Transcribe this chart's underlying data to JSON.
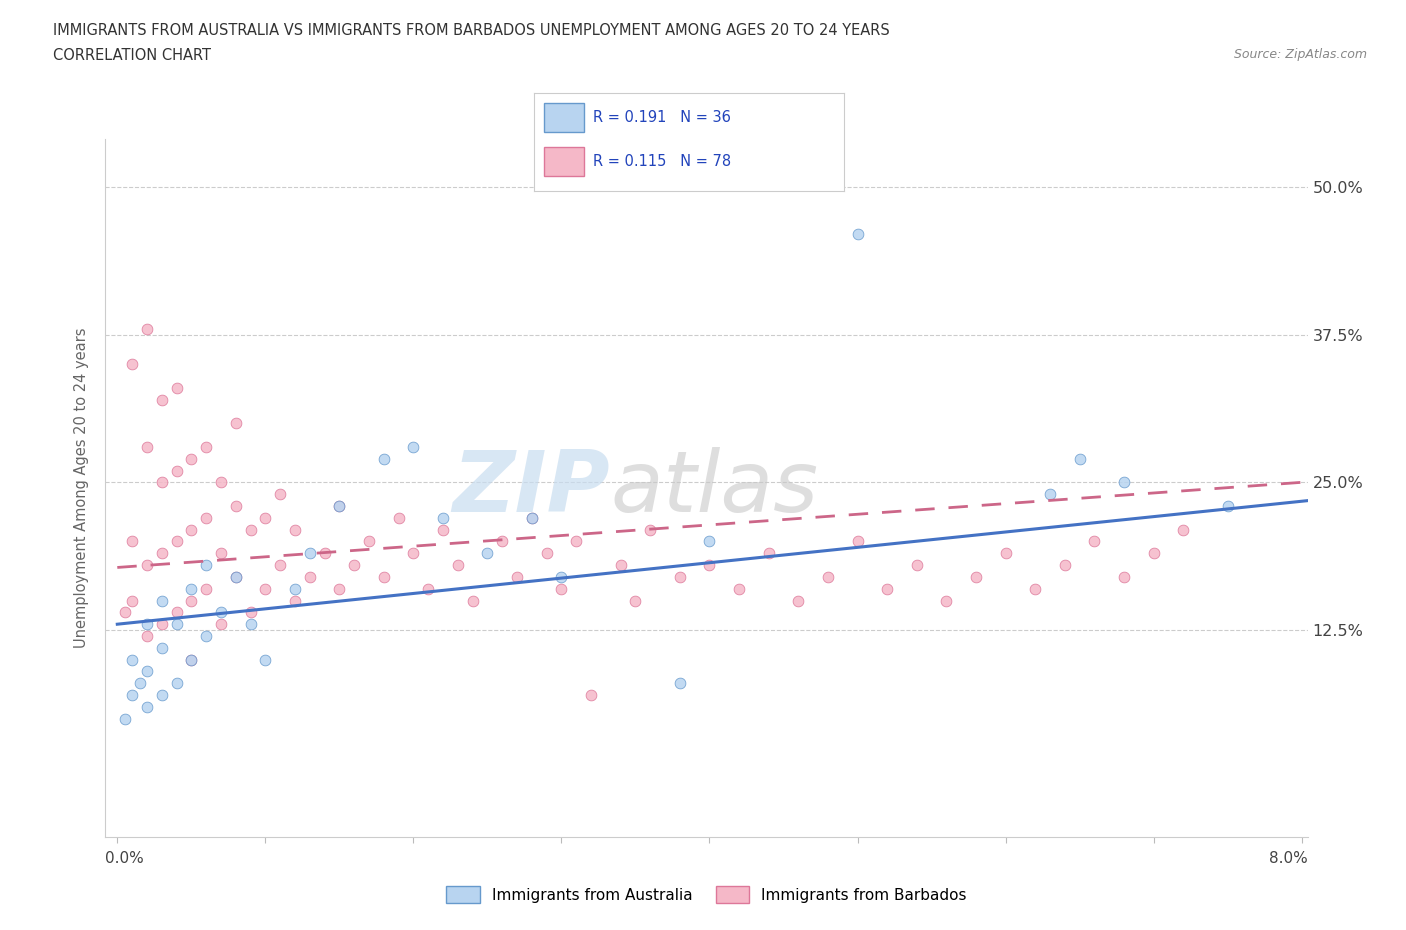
{
  "title_line1": "IMMIGRANTS FROM AUSTRALIA VS IMMIGRANTS FROM BARBADOS UNEMPLOYMENT AMONG AGES 20 TO 24 YEARS",
  "title_line2": "CORRELATION CHART",
  "source_text": "Source: ZipAtlas.com",
  "ylabel": "Unemployment Among Ages 20 to 24 years",
  "ytick_labels": [
    "12.5%",
    "25.0%",
    "37.5%",
    "50.0%"
  ],
  "ytick_values": [
    0.125,
    0.25,
    0.375,
    0.5
  ],
  "xmin": 0.0,
  "xmax": 0.08,
  "ymax": 0.54,
  "ymin": -0.05,
  "legend_r1": "R = 0.191",
  "legend_n1": "N = 36",
  "legend_r2": "R = 0.115",
  "legend_n2": "N = 78",
  "color_australia_fill": "#b8d4f0",
  "color_australia_edge": "#6699cc",
  "color_barbados_fill": "#f5b8c8",
  "color_barbados_edge": "#dd7799",
  "color_line_australia": "#4472c4",
  "color_line_barbados": "#cc6688",
  "watermark_zip": "ZIP",
  "watermark_atlas": "atlas",
  "aus_line_intercept": 0.13,
  "aus_line_slope": 1.3,
  "bar_line_intercept": 0.178,
  "bar_line_slope": 0.9,
  "australia_x": [
    0.0005,
    0.001,
    0.001,
    0.0015,
    0.002,
    0.002,
    0.002,
    0.003,
    0.003,
    0.003,
    0.004,
    0.004,
    0.005,
    0.005,
    0.006,
    0.006,
    0.007,
    0.008,
    0.009,
    0.01,
    0.012,
    0.013,
    0.015,
    0.018,
    0.02,
    0.022,
    0.025,
    0.028,
    0.03,
    0.038,
    0.04,
    0.05,
    0.063,
    0.065,
    0.068,
    0.075
  ],
  "australia_y": [
    0.05,
    0.07,
    0.1,
    0.08,
    0.06,
    0.09,
    0.13,
    0.07,
    0.11,
    0.15,
    0.08,
    0.13,
    0.1,
    0.16,
    0.12,
    0.18,
    0.14,
    0.17,
    0.13,
    0.1,
    0.16,
    0.19,
    0.23,
    0.27,
    0.28,
    0.22,
    0.19,
    0.22,
    0.17,
    0.08,
    0.2,
    0.46,
    0.24,
    0.27,
    0.25,
    0.23
  ],
  "barbados_x": [
    0.0005,
    0.001,
    0.001,
    0.001,
    0.002,
    0.002,
    0.002,
    0.002,
    0.003,
    0.003,
    0.003,
    0.003,
    0.004,
    0.004,
    0.004,
    0.004,
    0.005,
    0.005,
    0.005,
    0.005,
    0.006,
    0.006,
    0.006,
    0.007,
    0.007,
    0.007,
    0.008,
    0.008,
    0.008,
    0.009,
    0.009,
    0.01,
    0.01,
    0.011,
    0.011,
    0.012,
    0.012,
    0.013,
    0.014,
    0.015,
    0.015,
    0.016,
    0.017,
    0.018,
    0.019,
    0.02,
    0.021,
    0.022,
    0.023,
    0.024,
    0.026,
    0.027,
    0.028,
    0.029,
    0.03,
    0.031,
    0.032,
    0.034,
    0.035,
    0.036,
    0.038,
    0.04,
    0.042,
    0.044,
    0.046,
    0.048,
    0.05,
    0.052,
    0.054,
    0.056,
    0.058,
    0.06,
    0.062,
    0.064,
    0.066,
    0.068,
    0.07,
    0.072
  ],
  "barbados_y": [
    0.14,
    0.15,
    0.2,
    0.35,
    0.12,
    0.18,
    0.28,
    0.38,
    0.13,
    0.19,
    0.25,
    0.32,
    0.14,
    0.2,
    0.26,
    0.33,
    0.15,
    0.21,
    0.27,
    0.1,
    0.16,
    0.22,
    0.28,
    0.13,
    0.19,
    0.25,
    0.17,
    0.23,
    0.3,
    0.14,
    0.21,
    0.16,
    0.22,
    0.18,
    0.24,
    0.15,
    0.21,
    0.17,
    0.19,
    0.16,
    0.23,
    0.18,
    0.2,
    0.17,
    0.22,
    0.19,
    0.16,
    0.21,
    0.18,
    0.15,
    0.2,
    0.17,
    0.22,
    0.19,
    0.16,
    0.2,
    0.07,
    0.18,
    0.15,
    0.21,
    0.17,
    0.18,
    0.16,
    0.19,
    0.15,
    0.17,
    0.2,
    0.16,
    0.18,
    0.15,
    0.17,
    0.19,
    0.16,
    0.18,
    0.2,
    0.17,
    0.19,
    0.21
  ]
}
